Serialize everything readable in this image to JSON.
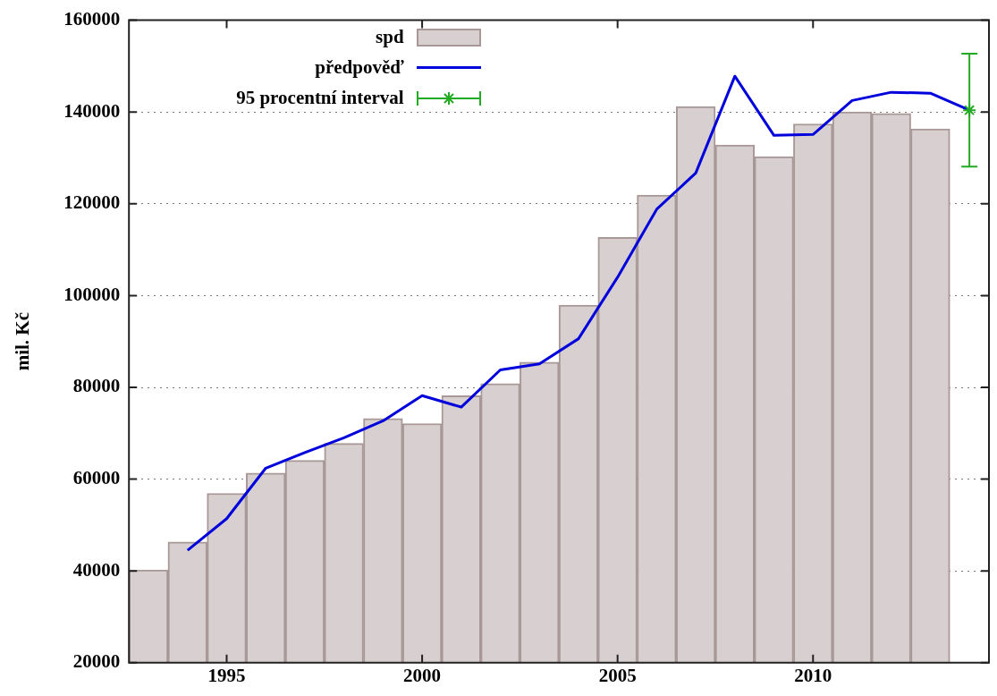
{
  "chart_data": {
    "type": "bar",
    "ylabel": "mil. Kč",
    "x": [
      1993,
      1994,
      1995,
      1996,
      1997,
      1998,
      1999,
      2000,
      2001,
      2002,
      2003,
      2004,
      2005,
      2006,
      2007,
      2008,
      2009,
      2010,
      2011,
      2012,
      2013
    ],
    "xlim": [
      1992.5,
      2014.5
    ],
    "xticks": [
      1995,
      2000,
      2005,
      2010
    ],
    "ylim": [
      20000,
      160000
    ],
    "yticks": [
      20000,
      40000,
      60000,
      80000,
      100000,
      120000,
      140000,
      160000
    ],
    "grid": "y",
    "legend": "top left",
    "series": [
      {
        "name": "spd",
        "color": "#d8d0d0",
        "values": [
          40200,
          46300,
          56900,
          61300,
          64100,
          67800,
          73200,
          72100,
          78200,
          80800,
          85500,
          97900,
          112700,
          121900,
          141200,
          132800,
          130300,
          137400,
          140000,
          139700,
          136300
        ]
      },
      {
        "name": "předpověď",
        "type": "line",
        "color": "#0000dd",
        "x": [
          1994,
          1995,
          1996,
          1997,
          1998,
          1999,
          2000,
          2001,
          2002,
          2003,
          2004,
          2005,
          2006,
          2007,
          2008,
          2009,
          2010,
          2011,
          2012,
          2013,
          2014
        ],
        "values": [
          44500,
          51400,
          62400,
          65800,
          69000,
          72700,
          78200,
          75700,
          83800,
          85100,
          90600,
          104000,
          118800,
          126700,
          147800,
          134900,
          135100,
          142500,
          144300,
          144100,
          140400
        ]
      },
      {
        "name": "95 procentní interval",
        "type": "scatter",
        "color": "#22aa22",
        "marker": "cross",
        "x": [
          2014
        ],
        "values": [
          140400
        ],
        "errors": [
          [
            128100,
            152700
          ]
        ]
      }
    ]
  }
}
